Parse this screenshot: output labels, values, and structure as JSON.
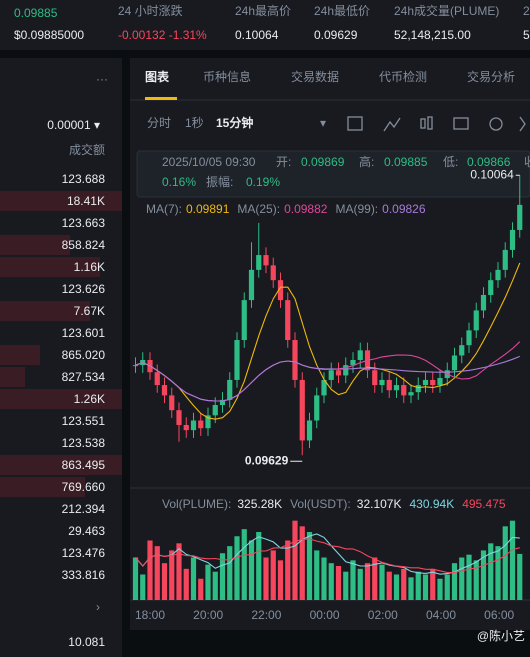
{
  "header": {
    "price": "0.09885",
    "price_usd": "$0.09885000",
    "stats": [
      {
        "label": "24 小时涨跌",
        "value": "-0.00132 -1.31%"
      },
      {
        "label": "24h最高价",
        "value": "0.10064"
      },
      {
        "label": "24h最低价",
        "value": "0.09629"
      },
      {
        "label": "24h成交量(PLUME)",
        "value": "52,148,215.00"
      },
      {
        "label": "2",
        "value": "5"
      }
    ]
  },
  "order_book": {
    "menu": "···",
    "tick_size": "0.00001 ▾",
    "column": "成交额",
    "rows": [
      "123.688",
      "18.41K",
      "123.663",
      "858.824",
      "1.16K",
      "123.626",
      "7.67K",
      "123.601",
      "865.020",
      "827.534",
      "1.26K",
      "123.551",
      "123.538",
      "863.495",
      "769.660",
      "212.394",
      "29.463",
      "123.476",
      "333.816"
    ],
    "more": "›",
    "last": "10.081"
  },
  "tabs": [
    "图表",
    "币种信息",
    "交易数据",
    "代币检测",
    "交易分析"
  ],
  "intervals": [
    "分时",
    "1秒",
    "15分钟"
  ],
  "info": {
    "time": "2025/10/05 09:30",
    "open_label": "开:",
    "open": "0.09869",
    "high_label": "高:",
    "high": "0.09885",
    "low_label": "低:",
    "low": "0.09866",
    "close_label": "收",
    "change": "0.16%",
    "amp_label": "振幅:",
    "amp": "0.19%"
  },
  "ma_legend": [
    {
      "label": "MA(7):",
      "value": "0.09891",
      "color": "#f0b90b"
    },
    {
      "label": "MA(25):",
      "value": "0.09882",
      "color": "#e0469b"
    },
    {
      "label": "MA(99):",
      "value": "0.09826",
      "color": "#a77bd8"
    }
  ],
  "vol_legend": [
    {
      "label": "Vol(PLUME):",
      "value": "325.28K"
    },
    {
      "label": "Vol(USDT):",
      "value": "32.107K"
    },
    {
      "label": "",
      "value": "430.94K"
    },
    {
      "label": "",
      "value": "495.475"
    }
  ],
  "chart_data": {
    "type": "candlestick",
    "up_color": "#2ebd85",
    "down_color": "#f6465d",
    "x_labels": [
      "18:00",
      "20:00",
      "22:00",
      "00:00",
      "02:00",
      "04:00",
      "06:00"
    ],
    "ylim": [
      0.09575,
      0.10111
    ],
    "close": [
      0.09769,
      0.09777,
      0.09758,
      0.09738,
      0.09722,
      0.09699,
      0.09676,
      0.09668,
      0.09683,
      0.09671,
      0.09691,
      0.09707,
      0.09715,
      0.09746,
      0.09808,
      0.0987,
      0.09917,
      0.0994,
      0.09924,
      0.09901,
      0.0987,
      0.09808,
      0.09746,
      0.09652,
      0.09683,
      0.09722,
      0.09746,
      0.09761,
      0.09753,
      0.09769,
      0.09777,
      0.09792,
      0.09761,
      0.09738,
      0.09746,
      0.0973,
      0.09738,
      0.09722,
      0.09727,
      0.09738,
      0.09746,
      0.09738,
      0.09749,
      0.09761,
      0.09784,
      0.098,
      0.09823,
      0.09854,
      0.09878,
      0.09901,
      0.09917,
      0.09948,
      0.09979,
      0.10018
    ],
    "high": [
      0.09781,
      0.09789,
      0.09789,
      0.0977,
      0.0975,
      0.09734,
      0.09711,
      0.09688,
      0.09695,
      0.09695,
      0.09703,
      0.09719,
      0.09727,
      0.09758,
      0.0982,
      0.09882,
      0.0996,
      0.0999,
      0.09952,
      0.09936,
      0.09913,
      0.09882,
      0.0982,
      0.09758,
      0.09695,
      0.09734,
      0.09758,
      0.09773,
      0.09773,
      0.09781,
      0.09789,
      0.09804,
      0.09804,
      0.09773,
      0.09758,
      0.09758,
      0.0975,
      0.0975,
      0.09739,
      0.0975,
      0.09758,
      0.09758,
      0.09761,
      0.09773,
      0.09796,
      0.09812,
      0.09835,
      0.09866,
      0.0989,
      0.09913,
      0.09929,
      0.0996,
      0.09991,
      0.10064
    ],
    "low": [
      0.09757,
      0.09757,
      0.09746,
      0.09726,
      0.0971,
      0.09687,
      0.0965,
      0.09656,
      0.09656,
      0.09659,
      0.09659,
      0.09679,
      0.09695,
      0.09703,
      0.09734,
      0.09796,
      0.09858,
      0.09905,
      0.09912,
      0.09889,
      0.09858,
      0.09796,
      0.09734,
      0.09629,
      0.0964,
      0.09671,
      0.0971,
      0.09734,
      0.09741,
      0.09741,
      0.09757,
      0.09765,
      0.09749,
      0.09726,
      0.09726,
      0.09718,
      0.09718,
      0.0971,
      0.0971,
      0.09715,
      0.09726,
      0.09726,
      0.09726,
      0.09737,
      0.09749,
      0.09772,
      0.09788,
      0.09811,
      0.09842,
      0.09866,
      0.09889,
      0.09905,
      0.09936,
      0.09967
    ],
    "high_label": "0.10064",
    "low_label": "0.09629",
    "volume_ylim": [
      0,
      600
    ],
    "volume": [
      300,
      180,
      420,
      380,
      260,
      350,
      400,
      220,
      300,
      150,
      250,
      200,
      330,
      380,
      450,
      500,
      420,
      480,
      300,
      350,
      280,
      420,
      560,
      520,
      480,
      350,
      300,
      260,
      240,
      200,
      280,
      220,
      260,
      300,
      250,
      200,
      180,
      220,
      160,
      200,
      180,
      220,
      150,
      180,
      260,
      300,
      320,
      280,
      350,
      400,
      380,
      520,
      560,
      325.28
    ]
  },
  "watermark": "@陈小艺"
}
